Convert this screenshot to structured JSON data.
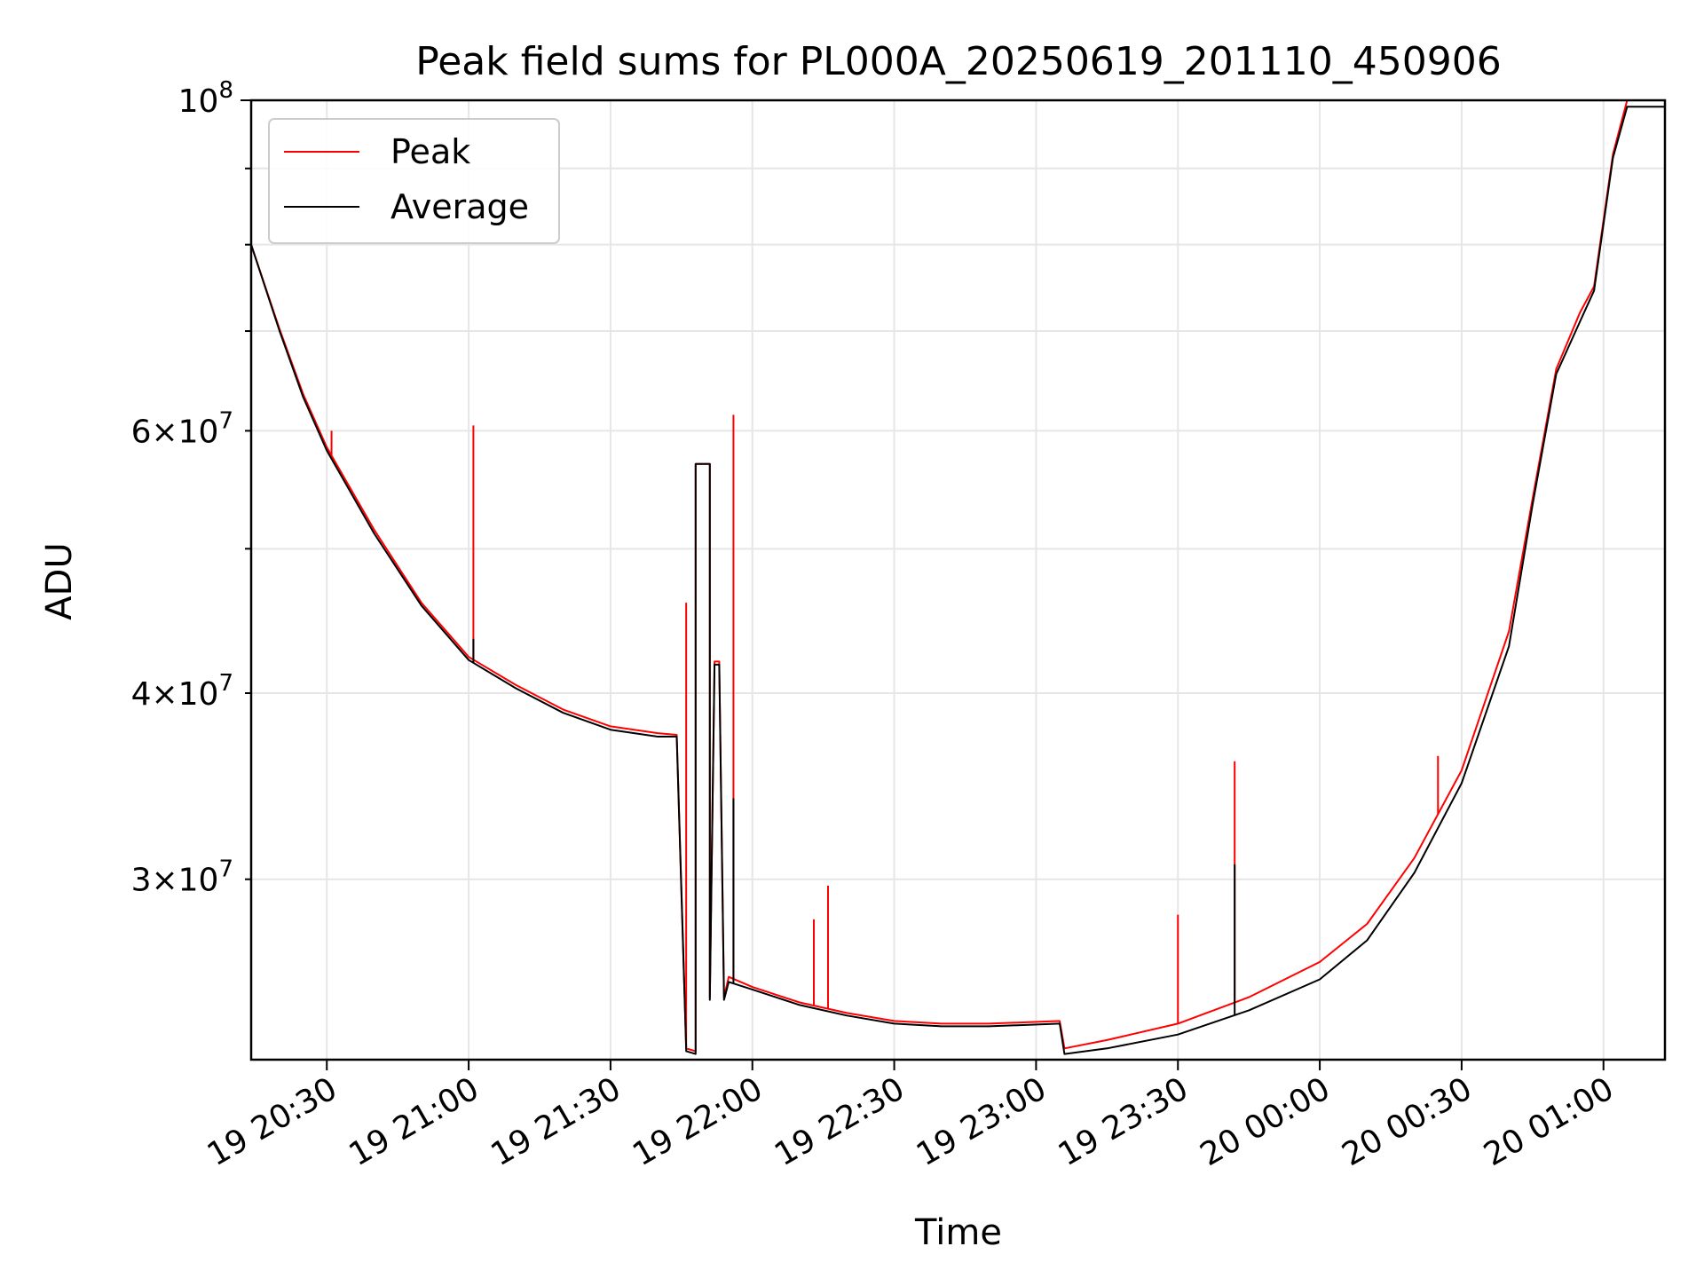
{
  "chart_data": {
    "type": "line",
    "title": "Peak field sums for PL000A_20250619_201110_450906",
    "xlabel": "Time",
    "ylabel": "ADU",
    "yscale": "log",
    "grid": true,
    "legend_position": "top-left",
    "xlim": [
      "2025-06-19 20:14",
      "2025-06-20 01:13"
    ],
    "ylim": [
      22700000,
      100000000
    ],
    "x_ticks": [
      {
        "value": "2025-06-19 20:30",
        "label": "19 20:30"
      },
      {
        "value": "2025-06-19 21:00",
        "label": "19 21:00"
      },
      {
        "value": "2025-06-19 21:30",
        "label": "19 21:30"
      },
      {
        "value": "2025-06-19 22:00",
        "label": "19 22:00"
      },
      {
        "value": "2025-06-19 22:30",
        "label": "19 22:30"
      },
      {
        "value": "2025-06-19 23:00",
        "label": "19 23:00"
      },
      {
        "value": "2025-06-19 23:30",
        "label": "19 23:30"
      },
      {
        "value": "2025-06-20 00:00",
        "label": "20 00:00"
      },
      {
        "value": "2025-06-20 00:30",
        "label": "20 00:30"
      },
      {
        "value": "2025-06-20 01:00",
        "label": "20 01:00"
      }
    ],
    "y_major_ticks": [
      {
        "value": 100000000,
        "label": "10",
        "exp": "8"
      }
    ],
    "y_minor_ticks": [
      {
        "value": 30000000,
        "label": "3×10",
        "exp": "7"
      },
      {
        "value": 40000000,
        "label": "4×10",
        "exp": "7"
      },
      {
        "value": 60000000,
        "label": "6×10",
        "exp": "7"
      }
    ],
    "y_minor_unlabeled": [
      50000000,
      70000000,
      80000000,
      90000000
    ],
    "series": [
      {
        "name": "Peak",
        "color": "#ff0000",
        "points": [
          [
            "2025-06-19 20:14",
            80000000
          ],
          [
            "2025-06-19 20:20",
            70200000
          ],
          [
            "2025-06-19 20:25",
            63500000
          ],
          [
            "2025-06-19 20:30",
            58500000
          ],
          [
            "2025-06-19 20:40",
            51500000
          ],
          [
            "2025-06-19 20:50",
            46000000
          ],
          [
            "2025-06-19 21:00",
            42300000
          ],
          [
            "2025-06-19 21:10",
            40500000
          ],
          [
            "2025-06-19 21:20",
            39000000
          ],
          [
            "2025-06-19 21:30",
            38000000
          ],
          [
            "2025-06-19 21:40",
            37600000
          ],
          [
            "2025-06-19 21:44",
            37500000
          ],
          [
            "2025-06-19 21:46",
            23100000
          ],
          [
            "2025-06-19 21:48",
            23000000
          ],
          [
            "2025-06-19 21:48",
            57000000
          ],
          [
            "2025-06-19 21:51",
            57000000
          ],
          [
            "2025-06-19 21:51",
            25000000
          ],
          [
            "2025-06-19 21:52",
            42000000
          ],
          [
            "2025-06-19 21:53",
            42000000
          ],
          [
            "2025-06-19 21:54",
            25000000
          ],
          [
            "2025-06-19 21:55",
            25800000
          ],
          [
            "2025-06-19 22:00",
            25400000
          ],
          [
            "2025-06-19 22:10",
            24800000
          ],
          [
            "2025-06-19 22:20",
            24400000
          ],
          [
            "2025-06-19 22:30",
            24100000
          ],
          [
            "2025-06-19 22:40",
            24000000
          ],
          [
            "2025-06-19 22:50",
            24000000
          ],
          [
            "2025-06-19 23:05",
            24100000
          ],
          [
            "2025-06-19 23:06",
            23100000
          ],
          [
            "2025-06-19 23:15",
            23400000
          ],
          [
            "2025-06-19 23:30",
            24000000
          ],
          [
            "2025-06-19 23:45",
            25000000
          ],
          [
            "2025-06-20 00:00",
            26400000
          ],
          [
            "2025-06-20 00:10",
            28000000
          ],
          [
            "2025-06-20 00:20",
            31000000
          ],
          [
            "2025-06-20 00:30",
            35500000
          ],
          [
            "2025-06-20 00:40",
            44000000
          ],
          [
            "2025-06-20 00:45",
            54000000
          ],
          [
            "2025-06-20 00:50",
            66000000
          ],
          [
            "2025-06-20 00:55",
            72000000
          ],
          [
            "2025-06-20 00:58",
            75000000
          ],
          [
            "2025-06-20 01:02",
            92000000
          ],
          [
            "2025-06-20 01:05",
            100000000
          ],
          [
            "2025-06-20 01:13",
            100000000
          ]
        ]
      },
      {
        "name": "Average",
        "color": "#000000",
        "points": [
          [
            "2025-06-19 20:14",
            80000000
          ],
          [
            "2025-06-19 20:20",
            70000000
          ],
          [
            "2025-06-19 20:25",
            63200000
          ],
          [
            "2025-06-19 20:30",
            58200000
          ],
          [
            "2025-06-19 20:40",
            51200000
          ],
          [
            "2025-06-19 20:50",
            45800000
          ],
          [
            "2025-06-19 21:00",
            42100000
          ],
          [
            "2025-06-19 21:10",
            40300000
          ],
          [
            "2025-06-19 21:20",
            38800000
          ],
          [
            "2025-06-19 21:30",
            37800000
          ],
          [
            "2025-06-19 21:40",
            37400000
          ],
          [
            "2025-06-19 21:44",
            37400000
          ],
          [
            "2025-06-19 21:46",
            23000000
          ],
          [
            "2025-06-19 21:48",
            22900000
          ],
          [
            "2025-06-19 21:48",
            57000000
          ],
          [
            "2025-06-19 21:51",
            57000000
          ],
          [
            "2025-06-19 21:51",
            24900000
          ],
          [
            "2025-06-19 21:52",
            41800000
          ],
          [
            "2025-06-19 21:53",
            41800000
          ],
          [
            "2025-06-19 21:54",
            24900000
          ],
          [
            "2025-06-19 21:55",
            25600000
          ],
          [
            "2025-06-19 22:00",
            25300000
          ],
          [
            "2025-06-19 22:10",
            24700000
          ],
          [
            "2025-06-19 22:20",
            24300000
          ],
          [
            "2025-06-19 22:30",
            24000000
          ],
          [
            "2025-06-19 22:40",
            23900000
          ],
          [
            "2025-06-19 22:50",
            23900000
          ],
          [
            "2025-06-19 23:05",
            24000000
          ],
          [
            "2025-06-19 23:06",
            22900000
          ],
          [
            "2025-06-19 23:15",
            23100000
          ],
          [
            "2025-06-19 23:30",
            23600000
          ],
          [
            "2025-06-19 23:45",
            24500000
          ],
          [
            "2025-06-20 00:00",
            25700000
          ],
          [
            "2025-06-20 00:10",
            27300000
          ],
          [
            "2025-06-20 00:20",
            30300000
          ],
          [
            "2025-06-20 00:30",
            34800000
          ],
          [
            "2025-06-20 00:40",
            43000000
          ],
          [
            "2025-06-20 00:45",
            53500000
          ],
          [
            "2025-06-20 00:50",
            65500000
          ],
          [
            "2025-06-20 00:55",
            71000000
          ],
          [
            "2025-06-20 00:58",
            74500000
          ],
          [
            "2025-06-20 01:02",
            91500000
          ],
          [
            "2025-06-20 01:05",
            99000000
          ],
          [
            "2025-06-20 01:13",
            99000000
          ]
        ],
        "spikes": []
      }
    ],
    "peak_spikes": [
      [
        "2025-06-19 20:31",
        60000000
      ],
      [
        "2025-06-19 21:01",
        60500000
      ],
      [
        "2025-06-19 21:46",
        46000000
      ],
      [
        "2025-06-19 21:56",
        61500000
      ],
      [
        "2025-06-19 22:13",
        28200000
      ],
      [
        "2025-06-19 22:16",
        29700000
      ],
      [
        "2025-06-19 23:30",
        28400000
      ],
      [
        "2025-06-19 23:42",
        36000000
      ],
      [
        "2025-06-20 00:25",
        36300000
      ]
    ],
    "average_spikes": [
      [
        "2025-06-19 21:01",
        43500000
      ],
      [
        "2025-06-19 21:56",
        34000000
      ],
      [
        "2025-06-19 23:42",
        30700000
      ]
    ]
  }
}
